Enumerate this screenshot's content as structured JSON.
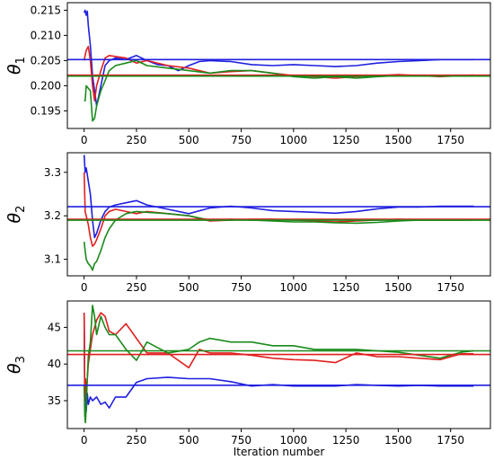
{
  "chart_data": [
    {
      "type": "line",
      "ylabel_symbol": "θ",
      "ylabel_sub": "1",
      "xlim": [
        -80,
        1940
      ],
      "ylim": [
        0.1915,
        0.2165
      ],
      "xticks": [
        0,
        250,
        500,
        750,
        1000,
        1250,
        1500,
        1750
      ],
      "yticks": [
        0.195,
        0.2,
        0.205,
        0.21,
        0.215
      ],
      "yticklabels": [
        "0.195",
        "0.200",
        "0.205",
        "0.210",
        "0.215"
      ],
      "hlines": [
        {
          "color": "#1f1fe0",
          "y": 0.2052
        },
        {
          "color": "#e01f1f",
          "y": 0.2021
        },
        {
          "color": "#1a8a1a",
          "y": 0.2019
        }
      ],
      "series": [
        {
          "color": "#1f1fe0",
          "x": [
            0,
            5,
            10,
            15,
            20,
            30,
            40,
            50,
            60,
            80,
            100,
            120,
            150,
            200,
            250,
            300,
            350,
            400,
            450,
            500,
            550,
            600,
            700,
            800,
            900,
            1000,
            1100,
            1200,
            1300,
            1400,
            1500,
            1600,
            1700,
            1800,
            1860
          ],
          "y": [
            0.2145,
            0.215,
            0.214,
            0.2148,
            0.212,
            0.208,
            0.202,
            0.199,
            0.196,
            0.2,
            0.204,
            0.205,
            0.2055,
            0.2052,
            0.206,
            0.205,
            0.2042,
            0.204,
            0.203,
            0.204,
            0.2048,
            0.205,
            0.2048,
            0.2042,
            0.204,
            0.2042,
            0.204,
            0.2038,
            0.204,
            0.2045,
            0.2048,
            0.205,
            0.2052,
            0.2052,
            0.2052
          ]
        },
        {
          "color": "#e01f1f",
          "x": [
            0,
            5,
            10,
            20,
            30,
            40,
            50,
            60,
            80,
            100,
            120,
            150,
            200,
            250,
            300,
            400,
            500,
            600,
            700,
            800,
            900,
            1000,
            1100,
            1200,
            1300,
            1400,
            1500,
            1600,
            1700,
            1800,
            1860
          ],
          "y": [
            0.205,
            0.206,
            0.207,
            0.2078,
            0.205,
            0.2,
            0.197,
            0.2,
            0.203,
            0.2055,
            0.206,
            0.2058,
            0.2055,
            0.2045,
            0.205,
            0.204,
            0.2035,
            0.2025,
            0.2028,
            0.203,
            0.2025,
            0.202,
            0.2018,
            0.2015,
            0.2018,
            0.202,
            0.2022,
            0.202,
            0.2018,
            0.202,
            0.2021
          ]
        },
        {
          "color": "#1a8a1a",
          "x": [
            0,
            5,
            10,
            20,
            30,
            40,
            50,
            60,
            80,
            100,
            120,
            150,
            200,
            250,
            300,
            400,
            500,
            600,
            700,
            800,
            900,
            1000,
            1100,
            1200,
            1300,
            1400,
            1500,
            1600,
            1700,
            1800,
            1860
          ],
          "y": [
            0.197,
            0.197,
            0.2,
            0.1995,
            0.199,
            0.193,
            0.1935,
            0.196,
            0.199,
            0.201,
            0.203,
            0.204,
            0.2045,
            0.205,
            0.204,
            0.2035,
            0.203,
            0.2025,
            0.203,
            0.203,
            0.2025,
            0.2018,
            0.2015,
            0.2018,
            0.2015,
            0.2018,
            0.202,
            0.202,
            0.202,
            0.202,
            0.202
          ]
        }
      ]
    },
    {
      "type": "line",
      "ylabel_symbol": "θ",
      "ylabel_sub": "2",
      "xlim": [
        -80,
        1940
      ],
      "ylim": [
        3.062,
        3.345
      ],
      "xticks": [
        0,
        250,
        500,
        750,
        1000,
        1250,
        1500,
        1750
      ],
      "yticks": [
        3.1,
        3.2,
        3.3
      ],
      "yticklabels": [
        "3.1",
        "3.2",
        "3.3"
      ],
      "hlines": [
        {
          "color": "#1f1fe0",
          "y": 3.221
        },
        {
          "color": "#e01f1f",
          "y": 3.192
        },
        {
          "color": "#1a8a1a",
          "y": 3.19
        }
      ],
      "series": [
        {
          "color": "#1f1fe0",
          "x": [
            0,
            5,
            10,
            20,
            30,
            40,
            50,
            60,
            80,
            100,
            120,
            150,
            200,
            250,
            300,
            400,
            500,
            600,
            700,
            800,
            900,
            1000,
            1100,
            1200,
            1300,
            1400,
            1500,
            1600,
            1700,
            1800,
            1860
          ],
          "y": [
            3.34,
            3.3,
            3.31,
            3.28,
            3.25,
            3.19,
            3.15,
            3.16,
            3.19,
            3.21,
            3.22,
            3.225,
            3.23,
            3.235,
            3.225,
            3.215,
            3.205,
            3.218,
            3.222,
            3.218,
            3.212,
            3.21,
            3.208,
            3.206,
            3.21,
            3.216,
            3.22,
            3.22,
            3.222,
            3.222,
            3.222
          ]
        },
        {
          "color": "#e01f1f",
          "x": [
            0,
            5,
            10,
            20,
            30,
            40,
            50,
            60,
            80,
            100,
            120,
            150,
            200,
            250,
            300,
            400,
            500,
            600,
            700,
            800,
            900,
            1000,
            1100,
            1200,
            1300,
            1400,
            1500,
            1600,
            1700,
            1800,
            1860
          ],
          "y": [
            3.3,
            3.21,
            3.2,
            3.18,
            3.15,
            3.13,
            3.135,
            3.145,
            3.17,
            3.2,
            3.21,
            3.215,
            3.21,
            3.205,
            3.21,
            3.205,
            3.2,
            3.188,
            3.19,
            3.192,
            3.192,
            3.19,
            3.188,
            3.186,
            3.188,
            3.19,
            3.192,
            3.19,
            3.19,
            3.19,
            3.191
          ]
        },
        {
          "color": "#1a8a1a",
          "x": [
            0,
            5,
            10,
            20,
            30,
            40,
            50,
            60,
            80,
            100,
            120,
            150,
            200,
            250,
            300,
            400,
            500,
            600,
            700,
            800,
            900,
            1000,
            1100,
            1200,
            1300,
            1400,
            1500,
            1600,
            1700,
            1800,
            1860
          ],
          "y": [
            3.14,
            3.12,
            3.1,
            3.09,
            3.085,
            3.075,
            3.09,
            3.095,
            3.12,
            3.15,
            3.17,
            3.19,
            3.205,
            3.21,
            3.208,
            3.205,
            3.2,
            3.19,
            3.192,
            3.19,
            3.188,
            3.186,
            3.186,
            3.184,
            3.183,
            3.185,
            3.188,
            3.19,
            3.19,
            3.19,
            3.19
          ]
        }
      ]
    },
    {
      "type": "line",
      "ylabel_symbol": "θ",
      "ylabel_sub": "3",
      "xlim": [
        -80,
        1940
      ],
      "ylim": [
        31.2,
        48.6
      ],
      "xticks": [
        0,
        250,
        500,
        750,
        1000,
        1250,
        1500,
        1750
      ],
      "xticklabels": [
        "0",
        "250",
        "500",
        "750",
        "1000",
        "1250",
        "1500",
        "1750"
      ],
      "yticks": [
        35,
        40,
        45
      ],
      "yticklabels": [
        "35",
        "40",
        "45"
      ],
      "xlabel": "Iteration number",
      "hlines": [
        {
          "color": "#1a8a1a",
          "y": 41.8
        },
        {
          "color": "#e01f1f",
          "y": 41.3
        },
        {
          "color": "#1f1fe0",
          "y": 37.1
        }
      ],
      "series": [
        {
          "color": "#1f1fe0",
          "x": [
            0,
            3,
            6,
            10,
            15,
            20,
            30,
            40,
            60,
            80,
            100,
            120,
            150,
            200,
            250,
            300,
            400,
            500,
            600,
            700,
            800,
            900,
            1000,
            1100,
            1200,
            1300,
            1400,
            1500,
            1600,
            1700,
            1800,
            1860
          ],
          "y": [
            47.0,
            35.0,
            37.0,
            33.5,
            36.0,
            34.5,
            35.5,
            35.0,
            35.5,
            34.5,
            34.8,
            34.0,
            35.5,
            35.5,
            37.5,
            38.0,
            38.2,
            38.0,
            38.0,
            37.6,
            37.0,
            37.2,
            37.0,
            37.0,
            37.0,
            37.2,
            37.1,
            37.0,
            37.1,
            37.0,
            37.0,
            37.0
          ]
        },
        {
          "color": "#e01f1f",
          "x": [
            0,
            3,
            6,
            10,
            15,
            20,
            30,
            40,
            50,
            60,
            80,
            100,
            120,
            150,
            200,
            250,
            300,
            400,
            500,
            550,
            600,
            700,
            800,
            900,
            1000,
            1100,
            1200,
            1300,
            1400,
            1500,
            1600,
            1700,
            1800,
            1860
          ],
          "y": [
            47.0,
            35.0,
            38.0,
            36.0,
            38.0,
            40.0,
            42.0,
            44.0,
            45.0,
            46.0,
            47.0,
            46.5,
            44.5,
            44.0,
            45.5,
            43.5,
            41.5,
            41.5,
            39.5,
            42.0,
            41.5,
            41.5,
            41.2,
            40.8,
            40.6,
            40.5,
            40.2,
            41.5,
            41.0,
            41.0,
            40.8,
            40.6,
            41.4,
            41.4
          ]
        },
        {
          "color": "#1a8a1a",
          "x": [
            0,
            3,
            6,
            10,
            15,
            20,
            30,
            40,
            50,
            60,
            80,
            100,
            120,
            150,
            200,
            250,
            300,
            400,
            500,
            550,
            600,
            700,
            800,
            900,
            1000,
            1100,
            1200,
            1300,
            1400,
            1500,
            1600,
            1700,
            1800,
            1860
          ],
          "y": [
            37.0,
            33.0,
            32.0,
            34.0,
            38.0,
            41.0,
            43.0,
            48.0,
            46.5,
            44.0,
            46.5,
            45.0,
            44.0,
            44.0,
            42.0,
            40.5,
            43.0,
            41.5,
            42.0,
            43.0,
            43.5,
            43.0,
            43.0,
            42.5,
            42.5,
            42.0,
            42.0,
            42.0,
            41.8,
            41.6,
            41.2,
            40.8,
            41.6,
            41.8
          ]
        }
      ]
    }
  ]
}
